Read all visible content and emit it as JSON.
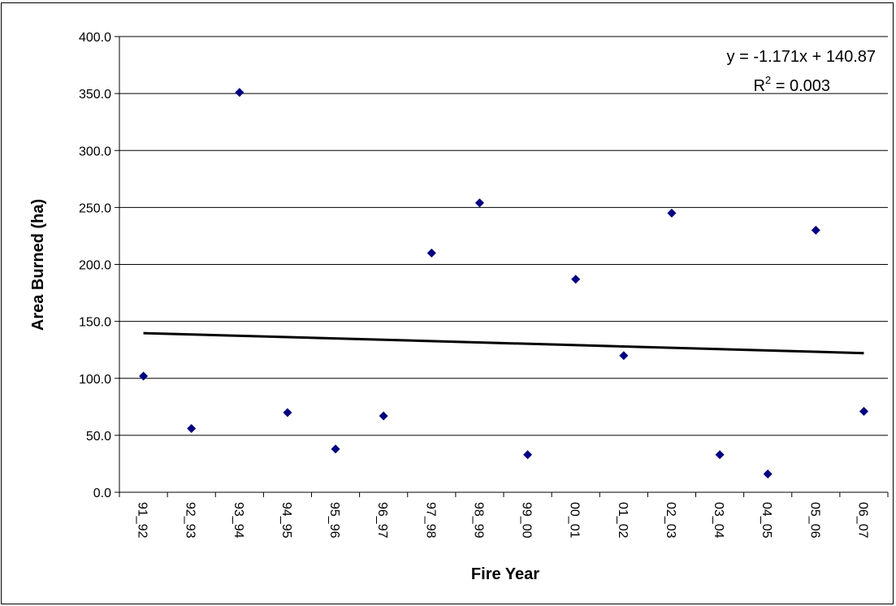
{
  "chart_data": {
    "type": "scatter",
    "xlabel": "Fire Year",
    "ylabel": "Area Burned (ha)",
    "categories": [
      "91_92",
      "92_93",
      "93_94",
      "94_95",
      "95_96",
      "96_97",
      "97_98",
      "98_99",
      "99_00",
      "00_01",
      "01_02",
      "02_03",
      "03_04",
      "04_05",
      "05_06",
      "06_07"
    ],
    "values": [
      102.0,
      56.0,
      351.0,
      70.0,
      38.0,
      67.0,
      210.0,
      254.0,
      33.0,
      187.0,
      120.0,
      245.0,
      33.0,
      16.0,
      230.0,
      71.0
    ],
    "ylim": [
      0,
      400
    ],
    "yticks": [
      "0.0",
      "50.0",
      "100.0",
      "150.0",
      "200.0",
      "250.0",
      "300.0",
      "350.0",
      "400.0"
    ],
    "grid": true,
    "trendline": {
      "slope": -1.171,
      "intercept": 140.87,
      "equation": "y = -1.171x + 140.87",
      "r2_prefix": "R",
      "r2_sup": "2",
      "r2_suffix": " = 0.003"
    },
    "colors": {
      "marker": "#000080",
      "trendline": "#000000",
      "grid": "#000000"
    }
  }
}
